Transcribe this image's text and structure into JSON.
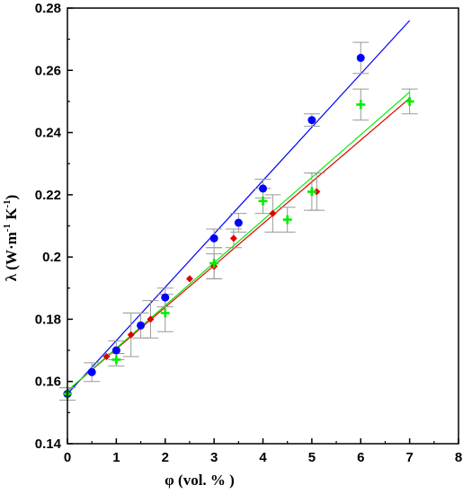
{
  "chart_data": {
    "type": "scatter",
    "title": "",
    "xlabel": "φ (vol. % )",
    "ylabel": {
      "prefix": "λ (W·m",
      "exp1": "-1",
      "mid": " K",
      "exp2": "-1",
      "suffix": ")"
    },
    "xlim": [
      0,
      8
    ],
    "ylim": [
      0.14,
      0.28
    ],
    "xticks": [
      "0",
      "1",
      "2",
      "3",
      "4",
      "5",
      "6",
      "7",
      "8"
    ],
    "yticks": [
      "0.14",
      "0.16",
      "0.18",
      "0.2",
      "0.22",
      "0.24",
      "0.26",
      "0.28"
    ],
    "grid": false,
    "legend": "none",
    "series": [
      {
        "marker": "circle",
        "color": "#0000ff",
        "points": [
          {
            "x": 0,
            "y": 0.156,
            "err": 0.002
          },
          {
            "x": 0.5,
            "y": 0.163,
            "err": 0.003
          },
          {
            "x": 1.0,
            "y": 0.17,
            "err": 0.003
          },
          {
            "x": 1.5,
            "y": 0.178,
            "err": 0.004
          },
          {
            "x": 2.0,
            "y": 0.187,
            "err": 0.003
          },
          {
            "x": 3.0,
            "y": 0.206,
            "err": 0.003
          },
          {
            "x": 3.5,
            "y": 0.211,
            "err": 0.003
          },
          {
            "x": 4.0,
            "y": 0.222,
            "err": 0.003
          },
          {
            "x": 5.0,
            "y": 0.244,
            "err": 0.002
          },
          {
            "x": 6.0,
            "y": 0.264,
            "err": 0.005
          }
        ],
        "fit": {
          "x": [
            0,
            7
          ],
          "y": [
            0.156,
            0.276
          ]
        }
      },
      {
        "marker": "diamond",
        "color": "#e00000",
        "points": [
          {
            "x": 0,
            "y": 0.156,
            "err": 0.0
          },
          {
            "x": 0.8,
            "y": 0.168,
            "err": 0.0
          },
          {
            "x": 1.3,
            "y": 0.175,
            "err": 0.007
          },
          {
            "x": 1.7,
            "y": 0.18,
            "err": 0.006
          },
          {
            "x": 2.5,
            "y": 0.193,
            "err": 0.0
          },
          {
            "x": 3.0,
            "y": 0.197,
            "err": 0.004
          },
          {
            "x": 3.4,
            "y": 0.206,
            "err": 0.003
          },
          {
            "x": 4.2,
            "y": 0.214,
            "err": 0.006
          },
          {
            "x": 5.1,
            "y": 0.221,
            "err": 0.006
          }
        ],
        "fit": {
          "x": [
            0,
            7
          ],
          "y": [
            0.157,
            0.251
          ]
        }
      },
      {
        "marker": "plus",
        "color": "#00ee00",
        "points": [
          {
            "x": 0,
            "y": 0.156,
            "err": 0.002
          },
          {
            "x": 1.0,
            "y": 0.167,
            "err": 0.002
          },
          {
            "x": 2.0,
            "y": 0.182,
            "err": 0.006
          },
          {
            "x": 3.0,
            "y": 0.198,
            "err": 0.005
          },
          {
            "x": 4.0,
            "y": 0.218,
            "err": 0.004
          },
          {
            "x": 4.5,
            "y": 0.212,
            "err": 0.004
          },
          {
            "x": 5.0,
            "y": 0.221,
            "err": 0.006
          },
          {
            "x": 6.0,
            "y": 0.249,
            "err": 0.005
          },
          {
            "x": 7.0,
            "y": 0.25,
            "err": 0.004
          }
        ],
        "fit": {
          "x": [
            0,
            7
          ],
          "y": [
            0.157,
            0.253
          ]
        }
      }
    ]
  }
}
